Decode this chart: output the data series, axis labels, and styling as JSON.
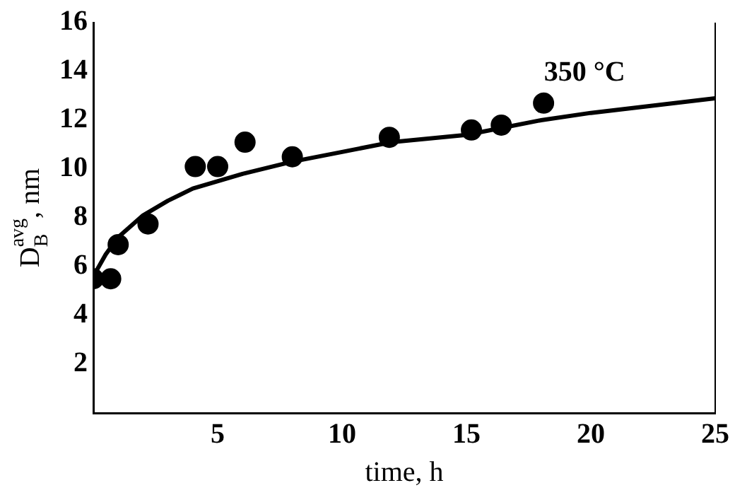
{
  "chart_data": {
    "type": "scatter",
    "xlabel": "time, h",
    "ylabel": "D$_{B}$$^{avg}$, nm",
    "xlim": [
      0,
      25
    ],
    "xticks": [
      5,
      10,
      15,
      20,
      25
    ],
    "ylim": [
      0,
      16
    ],
    "yticks": [
      2,
      4,
      6,
      8,
      10,
      12,
      14,
      16
    ],
    "grid": false,
    "legend": false,
    "marker": "circle",
    "annotations": [
      "350 °C"
    ],
    "series": [
      {
        "color": "#000000",
        "x": [
          0,
          0.7,
          1,
          2.2,
          4.1,
          5,
          6.1,
          8,
          11.9,
          15.2,
          16.4,
          18.1
        ],
        "values": [
          5.5,
          5.5,
          6.9,
          7.75,
          10.1,
          10.1,
          11.1,
          10.5,
          11.3,
          11.6,
          11.8,
          12.7
        ]
      },
      {
        "type": "line",
        "color": "#000000",
        "marker": "none",
        "x": [
          0,
          0.5,
          1,
          2,
          3,
          4,
          6,
          8,
          10,
          12,
          15,
          18,
          20,
          25
        ],
        "values": [
          5.6,
          6.5,
          7.2,
          8.1,
          8.7,
          9.2,
          9.8,
          10.3,
          10.7,
          11.1,
          11.4,
          12.0,
          12.3,
          12.9
        ]
      }
    ]
  }
}
